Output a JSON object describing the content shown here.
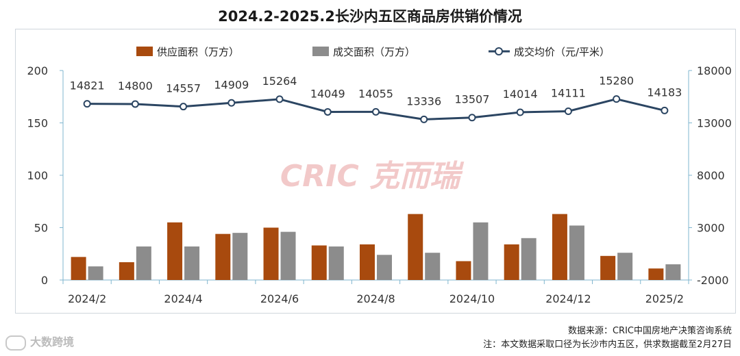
{
  "title": "2024.2-2025.2长沙内五区商品房供销价情况",
  "legend": {
    "supply": "供应面积（万方）",
    "deal": "成交面积（万方）",
    "price": "成交均价（元/平米）"
  },
  "watermark": "CRIC 克而瑞",
  "source": "数据来源：CRIC中国房地产决策咨询系统",
  "note": "注：本文数据采取口径为长沙市内五区，供求数据截至2月27日",
  "corner_watermark": "大数跨境",
  "colors": {
    "supply": "#a84a0e",
    "deal": "#8c8c8c",
    "price": "#2b4562",
    "axis_line": "#7fb6cf",
    "watermark": "#f2c9c9"
  },
  "chart_data": {
    "type": "bar",
    "categories": [
      "2024/2",
      "2024/3",
      "2024/4",
      "2024/5",
      "2024/6",
      "2024/7",
      "2024/8",
      "2024/9",
      "2024/10",
      "2024/11",
      "2024/12",
      "2025/1",
      "2025/2"
    ],
    "xtick_labels": [
      "2024/2",
      "",
      "2024/4",
      "",
      "2024/6",
      "",
      "2024/8",
      "",
      "2024/10",
      "",
      "2024/12",
      "",
      "2025/2"
    ],
    "series": [
      {
        "name": "供应面积（万方）",
        "type": "bar",
        "axis": "left",
        "values": [
          22,
          17,
          55,
          44,
          50,
          33,
          34,
          63,
          18,
          34,
          63,
          23,
          11
        ]
      },
      {
        "name": "成交面积（万方）",
        "type": "bar",
        "axis": "left",
        "values": [
          13,
          32,
          32,
          45,
          46,
          32,
          24,
          26,
          55,
          40,
          52,
          26,
          15
        ]
      },
      {
        "name": "成交均价（元/平米）",
        "type": "line",
        "axis": "right",
        "values": [
          14821,
          14800,
          14557,
          14909,
          15264,
          14049,
          14055,
          13336,
          13507,
          14014,
          14111,
          15280,
          14183
        ]
      }
    ],
    "y_left": {
      "range": [
        0,
        200
      ],
      "ticks": [
        0,
        50,
        100,
        150,
        200
      ]
    },
    "y_right": {
      "range": [
        -2000,
        18000
      ],
      "ticks": [
        -2000,
        3000,
        8000,
        13000,
        18000
      ]
    },
    "legend_position": "top",
    "grid": false
  }
}
